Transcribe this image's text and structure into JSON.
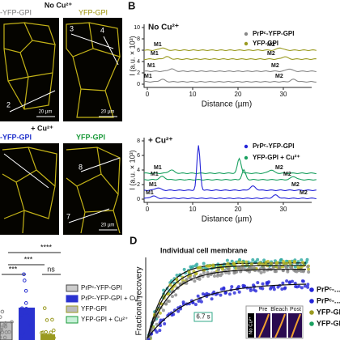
{
  "panel_a": {
    "top_condition": "No Cu²⁺",
    "top_labels": [
      "-YFP-GPI",
      "YFP-GPI"
    ],
    "line_numbers_top": [
      "2",
      "3",
      "4"
    ],
    "scale_bar": "20 µm",
    "bottom_condition": "+ Cu²⁺",
    "bottom_labels": [
      "-YFP-GPI",
      "YFP-GPI"
    ],
    "line_numbers_bottom": [
      "8",
      "7"
    ]
  },
  "panel_b": {
    "label": "B",
    "y_label": "I (a.u. × 10³)",
    "x_label": "Distance (µm)",
    "top": {
      "condition": "No Cu²⁺",
      "legend": [
        "PrPᶜ-YFP-GPI",
        "YFP-GPI"
      ],
      "yticks": [
        "0",
        "2",
        "4",
        "6",
        "8",
        "10"
      ],
      "xticks": [
        "0",
        "10",
        "20",
        "30"
      ],
      "marker_left": "M1",
      "marker_right": "M2"
    },
    "bottom": {
      "condition": "+ Cu²⁺",
      "legend": [
        "PrPᶜ-YFP-GPI",
        "YFP-GPI + Cu²⁺"
      ],
      "yticks": [
        "0",
        "2",
        "4",
        "6",
        "8"
      ],
      "xticks": [
        "0",
        "10",
        "20",
        "30"
      ],
      "marker_left": "M1",
      "marker_right": "M2"
    }
  },
  "panel_c": {
    "significance": [
      "****",
      "***",
      "***",
      "ns"
    ],
    "legend": [
      "PrPᶜ-YFP-GPI",
      "PrPᶜ-YFP-GPI + Cu²⁺",
      "YFP-GPI",
      "YFP-GPI + Cu²⁺"
    ]
  },
  "panel_d": {
    "label": "D",
    "title": "Individual cell membrane",
    "y_label": "Fractional recovery",
    "legend": [
      "PrPᶜ-...",
      "PrPᶜ-...",
      "YFP-GP...",
      "YFP-GP..."
    ],
    "inset_labels": [
      "Pre",
      "Bleach",
      "Post"
    ],
    "inset_condition": "No Cu²⁺",
    "time": "6.7 s"
  }
}
